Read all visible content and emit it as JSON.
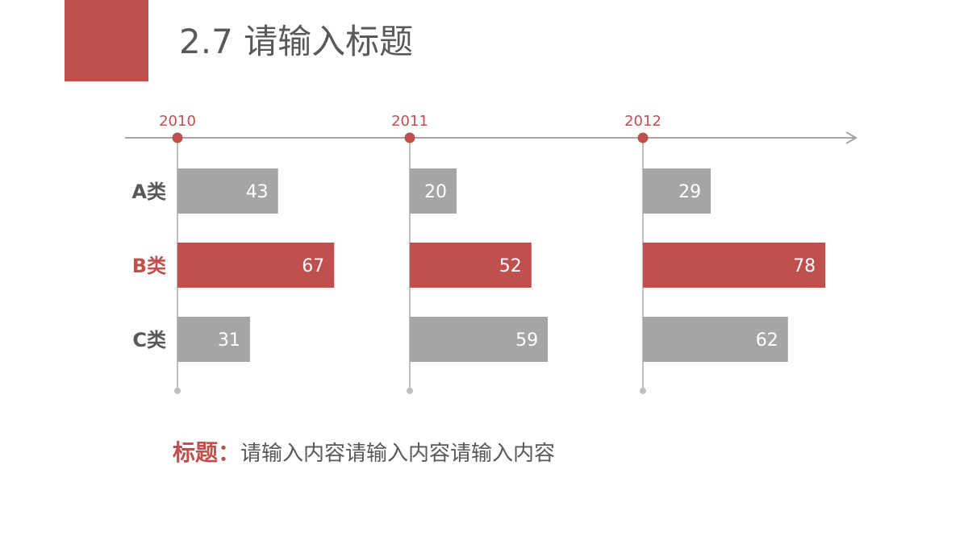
{
  "header": {
    "title": "2.7 请输入标题"
  },
  "colors": {
    "accent": "#C0504D",
    "gray_bar": "#A5A5A5",
    "axis": "#A6A6A6",
    "text": "#595959"
  },
  "chart_data": {
    "type": "bar",
    "orientation": "horizontal",
    "groups": [
      "2010",
      "2011",
      "2012"
    ],
    "categories": [
      "A类",
      "B类",
      "C类"
    ],
    "category_colors": [
      "#A5A5A5",
      "#C0504D",
      "#A5A5A5"
    ],
    "series": [
      {
        "group": "2010",
        "values": [
          43,
          67,
          31
        ]
      },
      {
        "group": "2011",
        "values": [
          20,
          52,
          59
        ]
      },
      {
        "group": "2012",
        "values": [
          29,
          78,
          62
        ]
      }
    ],
    "data_labels": true,
    "grid": false
  },
  "caption": {
    "lead": "标题：",
    "text": "请输入内容请输入内容请输入内容"
  }
}
